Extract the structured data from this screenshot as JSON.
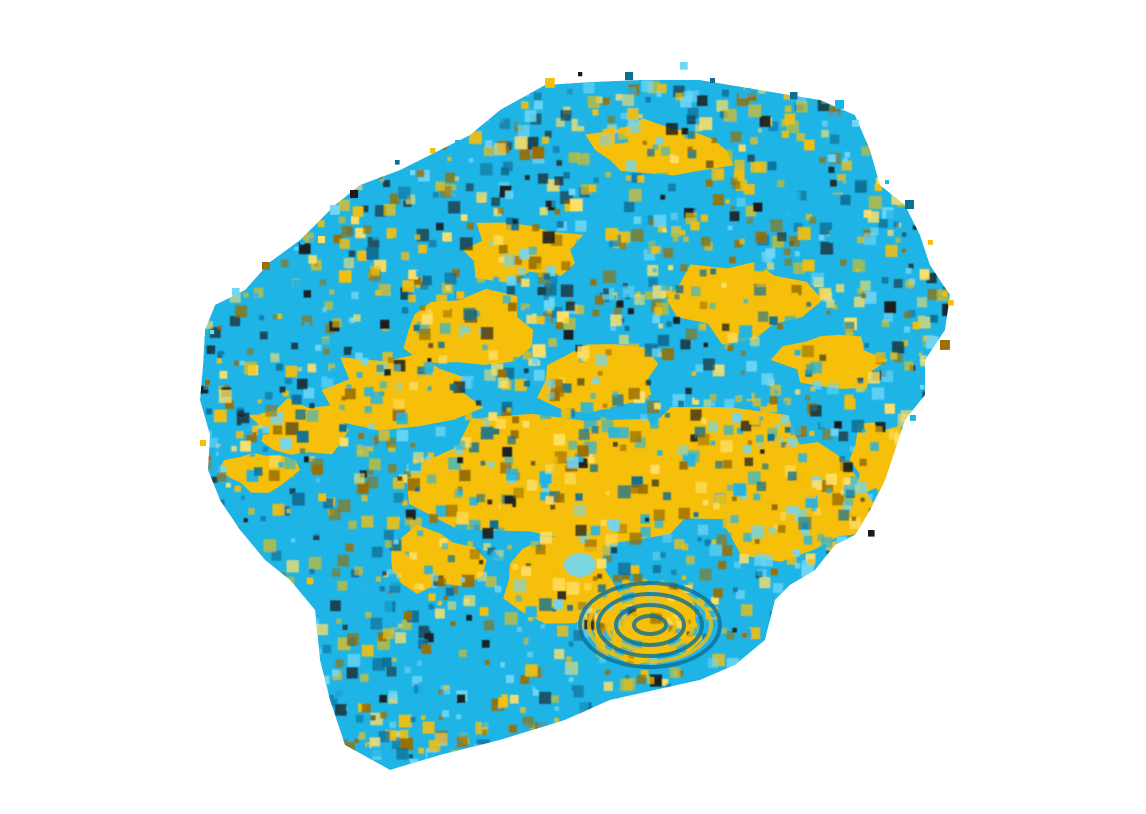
{
  "scene": {
    "background_color": "#ffffff",
    "colors": {
      "phase_a": "#1fb4e6",
      "phase_a_dark": "#0b6f96",
      "phase_a_light": "#6fd6f5",
      "phase_b": "#f5bf0a",
      "phase_b_dark": "#9a6e00",
      "phase_b_light": "#ffe066",
      "shadow": "#1a1a1a"
    },
    "phase_a_fraction": 0.55,
    "phase_b_fraction": 0.45
  }
}
